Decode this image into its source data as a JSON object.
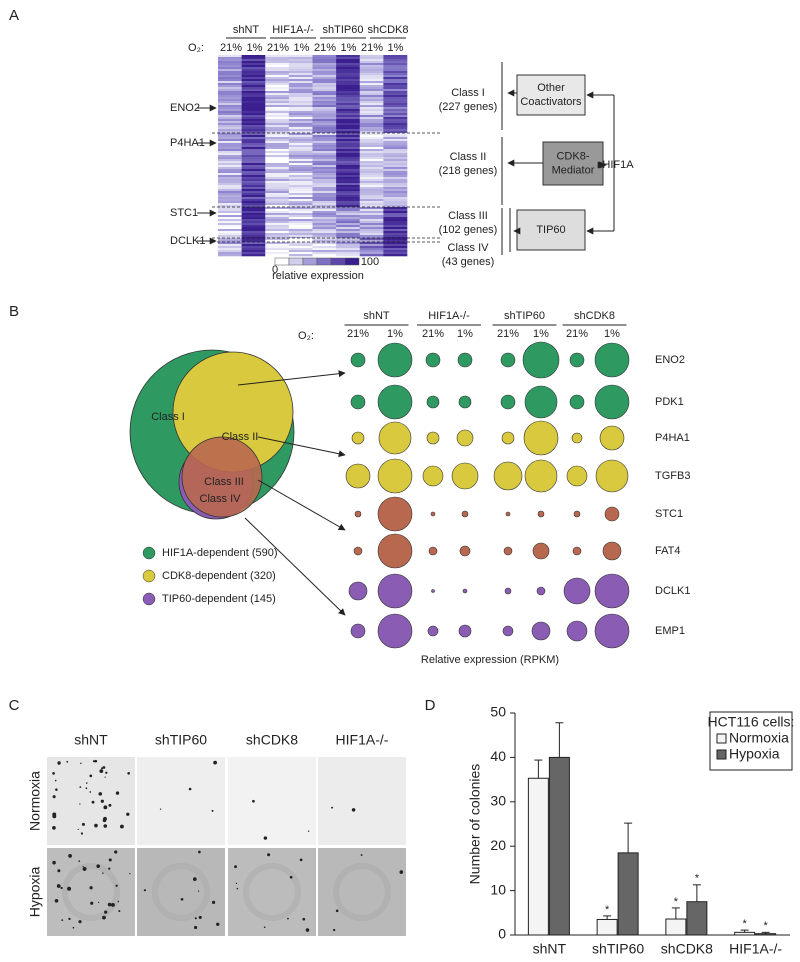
{
  "panels": {
    "A": {
      "label": "A",
      "groups": [
        "shNT",
        "HIF1A-/-",
        "shTIP60",
        "shCDK8"
      ],
      "o2_label": "O₂:",
      "conditions": [
        "21%",
        "1%"
      ],
      "genes": [
        "ENO2",
        "P4HA1",
        "STC1",
        "DCLK1"
      ],
      "classes": [
        {
          "name": "Class I",
          "count": "(227 genes)"
        },
        {
          "name": "Class II",
          "count": "(218 genes)"
        },
        {
          "name": "Class III",
          "count": "(102 genes)"
        },
        {
          "name": "Class IV",
          "count": "(43 genes)"
        }
      ],
      "boxes": [
        [
          "Other",
          "Coactivators"
        ],
        [
          "CDK8-",
          "Mediator"
        ],
        [
          "TIP60"
        ]
      ],
      "regulator": "HIF1A",
      "colorbar": {
        "min": 0,
        "max": 100,
        "label": "relative expression"
      }
    },
    "B": {
      "label": "B",
      "groups": [
        "shNT",
        "HIF1A-/-",
        "shTIP60",
        "shCDK8"
      ],
      "o2_label": "O₂:",
      "conditions": [
        "21%",
        "1%"
      ],
      "genes": [
        "ENO2",
        "PDK1",
        "P4HA1",
        "TGFB3",
        "STC1",
        "FAT4",
        "DCLK1",
        "EMP1"
      ],
      "row_colors": [
        "#2e9a62",
        "#2e9a62",
        "#d9c93e",
        "#d9c93e",
        "#b8684f",
        "#b8684f",
        "#8a5cb4",
        "#8a5cb4"
      ],
      "sizes": [
        [
          7,
          17,
          7,
          7,
          7,
          18,
          7,
          17
        ],
        [
          7,
          17,
          6,
          6,
          7,
          16,
          7,
          17
        ],
        [
          6,
          16,
          6,
          8,
          6,
          17,
          5,
          12
        ],
        [
          12,
          17,
          10,
          13,
          14,
          16,
          10,
          16
        ],
        [
          3,
          17,
          2,
          3,
          2,
          3,
          3,
          7
        ],
        [
          4,
          17,
          4,
          5,
          4,
          8,
          4,
          9
        ],
        [
          9,
          17,
          1.5,
          2,
          3,
          4,
          13,
          17
        ],
        [
          7,
          17,
          5,
          6,
          5,
          9,
          10,
          17
        ]
      ],
      "venn": [
        "Class I",
        "Class II",
        "Class III",
        "Class IV"
      ],
      "legend": [
        {
          "label": "HIF1A-dependent (590)",
          "color": "#2e9a62"
        },
        {
          "label": "CDK8-dependent (320)",
          "color": "#d9c93e"
        },
        {
          "label": "TIP60-dependent (145)",
          "color": "#8a5cb4"
        }
      ],
      "xlabel": "Relative expression (RPKM)"
    },
    "C": {
      "label": "C",
      "columns": [
        "shNT",
        "shTIP60",
        "shCDK8",
        "HIF1A-/-"
      ],
      "rows": [
        "Normoxia",
        "Hypoxia"
      ]
    }
  },
  "chart_data": {
    "type": "bar",
    "panel_label": "D",
    "ylabel": "Number of colonies",
    "categories": [
      "shNT",
      "shTIP60",
      "shCDK8",
      "HIF1A-/-"
    ],
    "series": [
      {
        "name": "Normoxia",
        "color": "#f4f4f4",
        "values": [
          35.3,
          3.5,
          3.6,
          0.6
        ],
        "errors": [
          4.1,
          0.8,
          2.5,
          0.5
        ],
        "significance": [
          null,
          "*",
          "*",
          "*"
        ]
      },
      {
        "name": "Hypoxia",
        "color": "#666666",
        "values": [
          40,
          18.5,
          7.5,
          0.3
        ],
        "errors": [
          7.8,
          6.7,
          3.8,
          0.3
        ],
        "significance": [
          null,
          null,
          "*",
          "*"
        ]
      }
    ],
    "legend_title": "HCT116 cells:",
    "ylim": [
      0,
      50
    ],
    "yticks": [
      0,
      10,
      20,
      30,
      40,
      50
    ]
  }
}
